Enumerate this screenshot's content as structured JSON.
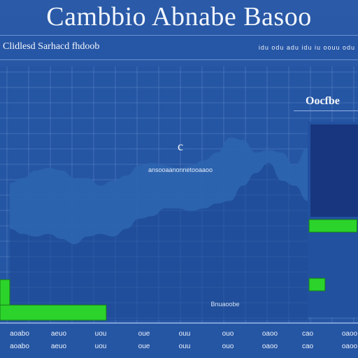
{
  "title": "Cambbio Abnabe Basoo",
  "header": {
    "left_text": "Clidlesd Sarhacd fhdoob",
    "right_text": "idu odu adu idu iu oouu odu"
  },
  "main_chart": {
    "annotation_glyph": "c",
    "annotation_text": "ansooaanonnetooaaoo",
    "bottom_label": "Bnuaoobe",
    "x_tick_labels": [
      "aoabo",
      "aeuo",
      "uou",
      "oue",
      "ouu",
      "ouo",
      "oaoo",
      "cao",
      "oaoo",
      "oao"
    ]
  },
  "side_panel": {
    "title": "Oocfbe"
  },
  "colors": {
    "background": "#2556a4",
    "area_fill": "#2c64b0",
    "grid": "#6b90cc",
    "green": "#2bd32b",
    "side_panel": "#18367f"
  },
  "chart_data": {
    "type": "area",
    "series": [
      {
        "values": [
          54,
          56,
          59,
          60,
          59,
          56,
          56,
          53,
          55,
          57,
          61,
          62,
          61,
          60,
          61,
          63,
          66,
          72,
          71,
          66,
          67,
          66,
          61,
          68
        ]
      },
      {
        "values": [
          36,
          34,
          33,
          34,
          32,
          30,
          33,
          34,
          33,
          36,
          40,
          41,
          44,
          44,
          43,
          44,
          46,
          47,
          53,
          58,
          62,
          55,
          53,
          47
        ]
      }
    ],
    "bars": [
      {
        "values": [
          16,
          6
        ]
      }
    ],
    "side_bars": [
      {
        "values": [
          36,
          12
        ]
      }
    ],
    "ylim": [
      0,
      100
    ],
    "grid": true
  }
}
